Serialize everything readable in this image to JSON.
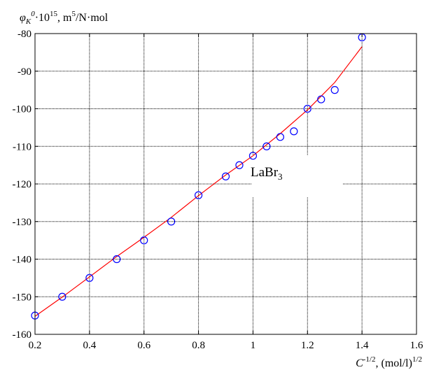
{
  "chart_data": {
    "type": "scatter",
    "title": "",
    "ylabel": {
      "symbol": "φ",
      "symbol_sub": "K",
      "symbol_sup": "0",
      "factor": "·10",
      "factor_exp": "15",
      "unit_pre": ", m",
      "unit_exp": "5",
      "unit_post": "/N·mol"
    },
    "xlabel": {
      "symbol": "C",
      "symbol_exp": "-1/2",
      "unit": ", (mol/l)",
      "unit_exp": "1/2"
    },
    "xlim": [
      0.2,
      1.6
    ],
    "ylim": [
      -160,
      -80
    ],
    "xticks": [
      0.2,
      0.4,
      0.6,
      0.8,
      1.0,
      1.2,
      1.4,
      1.6
    ],
    "xtick_labels": [
      "0.2",
      "0.4",
      "0.6",
      "0.8",
      "1",
      "1.2",
      "1.4",
      "1.6"
    ],
    "yticks": [
      -160,
      -150,
      -140,
      -130,
      -120,
      -110,
      -100,
      -90,
      -80
    ],
    "ytick_labels": [
      "-160",
      "-150",
      "-140",
      "-130",
      "-120",
      "-110",
      "-100",
      "-90",
      "-80"
    ],
    "grid": true,
    "series": [
      {
        "kind": "points",
        "marker": "circle",
        "color": "#0000ff",
        "x": [
          0.2,
          0.3,
          0.4,
          0.5,
          0.6,
          0.7,
          0.8,
          0.9,
          0.95,
          1.0,
          1.05,
          1.1,
          1.15,
          1.2,
          1.25,
          1.3,
          1.4
        ],
        "y": [
          -155,
          -150,
          -145,
          -140,
          -135,
          -130,
          -123,
          -118,
          -115,
          -112.5,
          -110,
          -107.5,
          -106,
          -100,
          -97.5,
          -95,
          -81
        ]
      },
      {
        "kind": "fit-line",
        "color": "#ff0000",
        "x": [
          0.2,
          0.3,
          0.4,
          0.5,
          0.6,
          0.7,
          0.8,
          0.9,
          1.0,
          1.1,
          1.2,
          1.3,
          1.4
        ],
        "y": [
          -155.2,
          -150.1,
          -144.7,
          -139.3,
          -134.2,
          -128.9,
          -123.1,
          -117.6,
          -112.5,
          -106.6,
          -100.3,
          -93.0,
          -83.5
        ]
      }
    ],
    "annotation": {
      "text": "LaBr",
      "sub": "3",
      "x": 1.02,
      "y": -118
    }
  }
}
